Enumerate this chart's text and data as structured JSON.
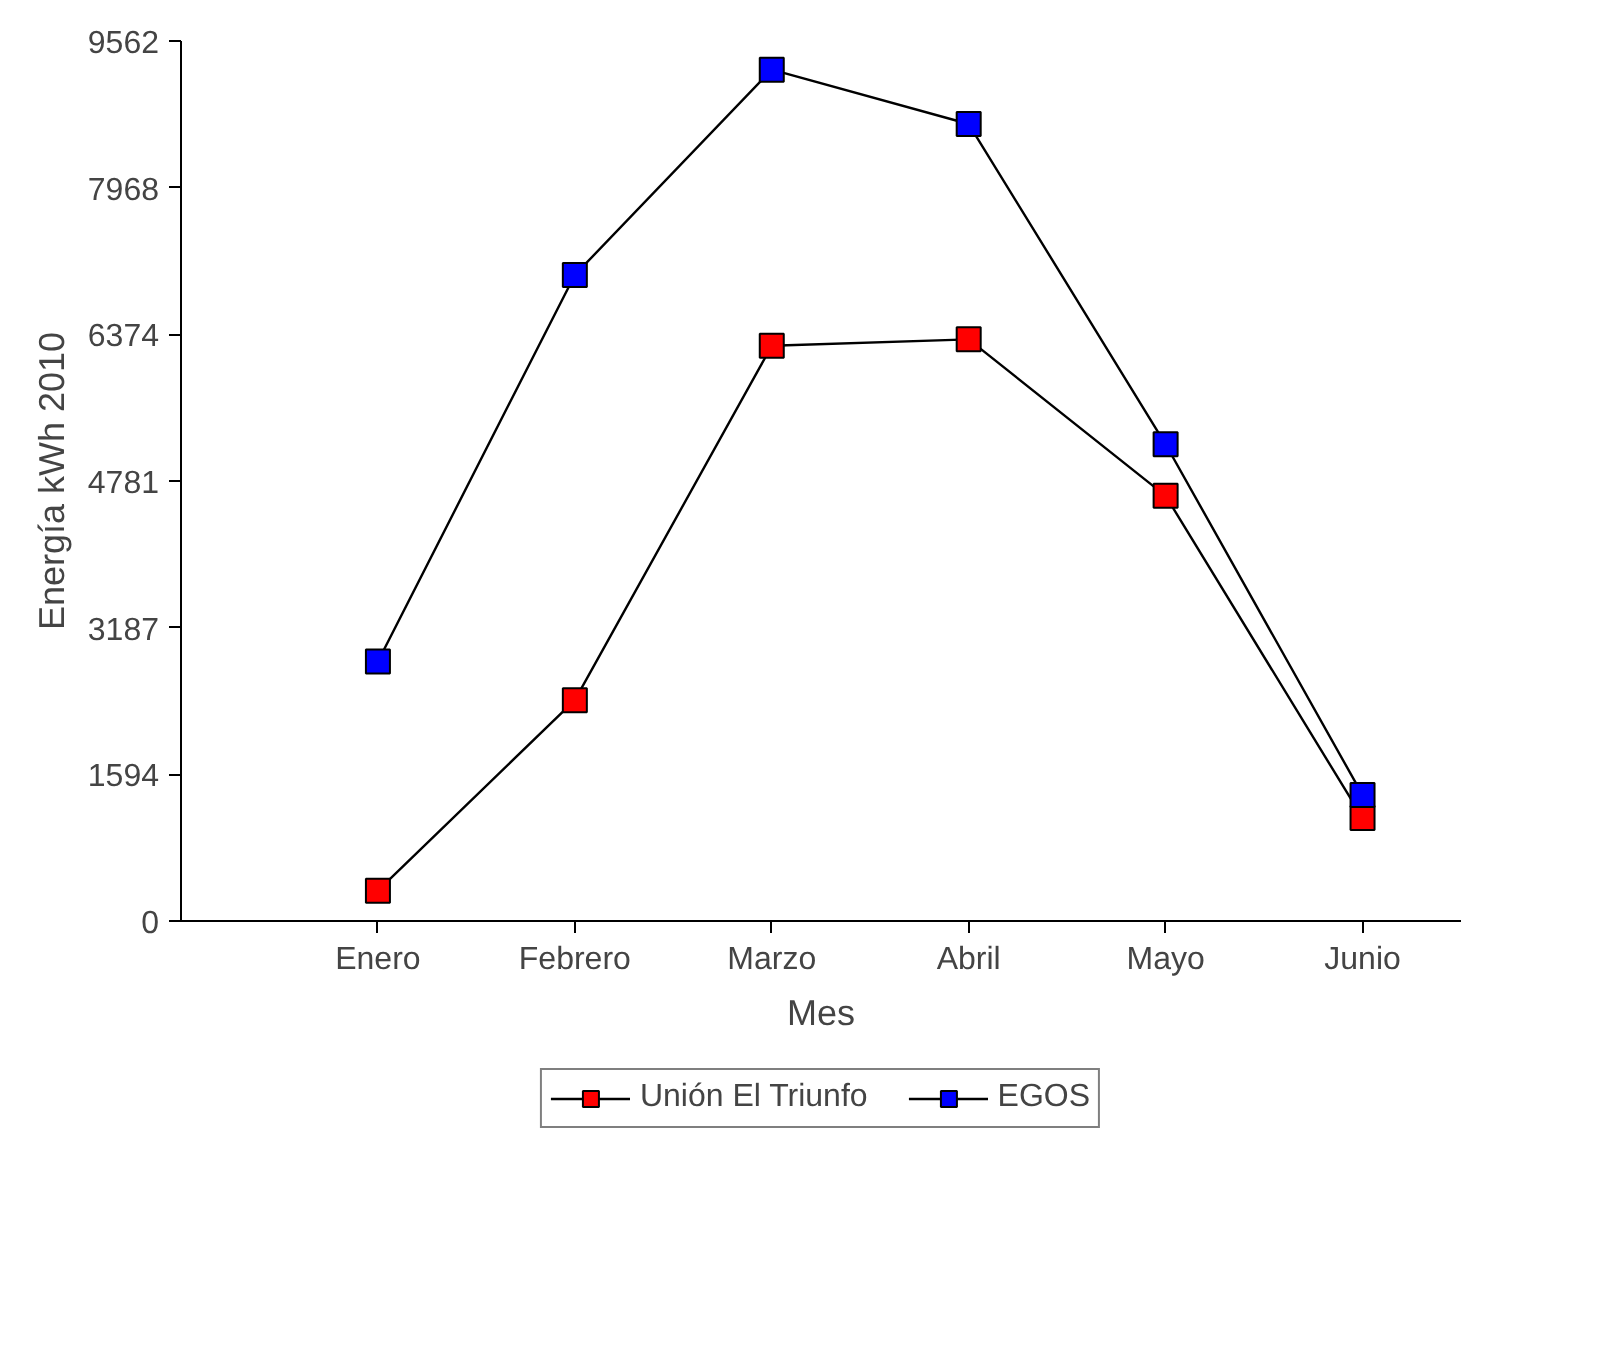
{
  "chart_data": {
    "type": "line",
    "xlabel": "Mes",
    "ylabel": "Energía kWh 2010",
    "categories": [
      "Enero",
      "Febrero",
      "Marzo",
      "Abril",
      "Mayo",
      "Junio"
    ],
    "series": [
      {
        "name": "Unión El Triunfo",
        "color": "#ff0000",
        "values": [
          330,
          2400,
          6250,
          6320,
          4620,
          1120
        ]
      },
      {
        "name": "EGOS",
        "color": "#0000ff",
        "values": [
          2820,
          7020,
          9250,
          8660,
          5180,
          1370
        ]
      }
    ],
    "ylim": [
      0,
      9562
    ],
    "yticks": [
      0,
      1594,
      3187,
      4781,
      6374,
      7968,
      9562
    ],
    "grid": false,
    "legend": "bottom",
    "marker": "square",
    "line_style": "solid"
  }
}
